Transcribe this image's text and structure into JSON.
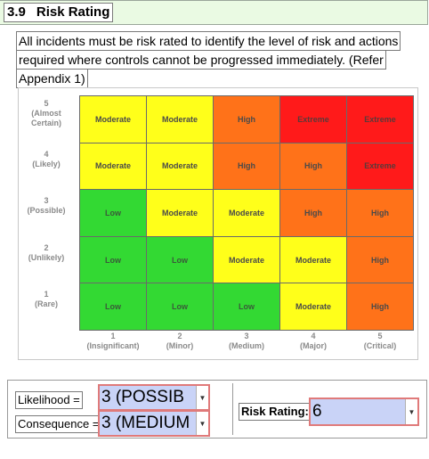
{
  "section": {
    "number": "3.9",
    "title": "Risk Rating"
  },
  "intro": {
    "lines": [
      "All incidents must be risk rated to identify the level of risk and actions",
      "required where controls cannot be progressed immediately. (Refer",
      "Appendix 1)"
    ]
  },
  "matrix": {
    "likelihood_rows": [
      {
        "number": "5",
        "name": "(Almost",
        "name2": "Certain)"
      },
      {
        "number": "4",
        "name": "(Likely)",
        "name2": ""
      },
      {
        "number": "3",
        "name": "(Possible)",
        "name2": ""
      },
      {
        "number": "2",
        "name": "(Unlikely)",
        "name2": ""
      },
      {
        "number": "1",
        "name": "(Rare)",
        "name2": ""
      }
    ],
    "consequence_cols": [
      {
        "number": "1",
        "name": "(Insignificant)"
      },
      {
        "number": "2",
        "name": "(Minor)"
      },
      {
        "number": "3",
        "name": "(Medium)"
      },
      {
        "number": "4",
        "name": "(Major)"
      },
      {
        "number": "5",
        "name": "(Critical)"
      }
    ],
    "cells": [
      [
        "Moderate",
        "Moderate",
        "High",
        "Extreme",
        "Extreme"
      ],
      [
        "Moderate",
        "Moderate",
        "High",
        "High",
        "Extreme"
      ],
      [
        "Low",
        "Moderate",
        "Moderate",
        "High",
        "High"
      ],
      [
        "Low",
        "Low",
        "Moderate",
        "Moderate",
        "High"
      ],
      [
        "Low",
        "Low",
        "Low",
        "Moderate",
        "High"
      ]
    ],
    "colors": {
      "Low": "#33d933",
      "Moderate": "#ffff1a",
      "High": "#ff7219",
      "Extreme": "#ff1a1a"
    }
  },
  "form": {
    "likelihood_label": "Likelihood =",
    "likelihood_value": "3 (POSSIB",
    "consequence_label": "Consequence =",
    "consequence_value": "3 (MEDIUM",
    "risk_label": "Risk Rating:",
    "risk_value": "6",
    "arrow_icon": "chevron-down-icon"
  }
}
